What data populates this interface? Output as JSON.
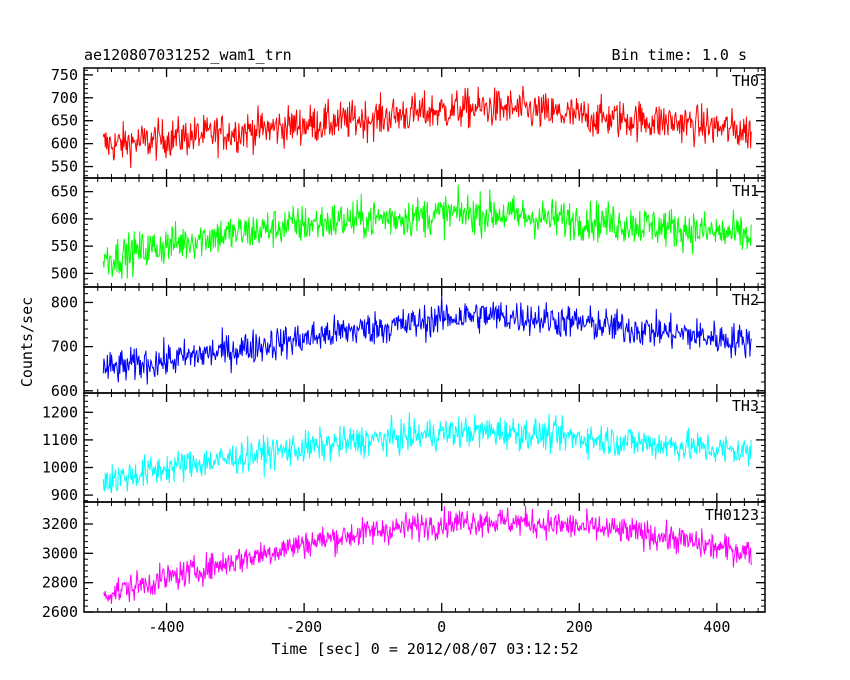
{
  "header": {
    "title": "ae120807031252_wam1_trn",
    "bin_time": "Bin time: 1.0 s"
  },
  "chart_data": {
    "type": "line",
    "title": "ae120807031252_wam1_trn",
    "subtitle": "Bin time: 1.0 s",
    "xlabel": "Time [sec] 0 = 2012/08/07 03:12:52",
    "ylabel": "Counts/sec",
    "x": [
      -500,
      -475,
      -450,
      -425,
      -400,
      -375,
      -350,
      -325,
      -300,
      -275,
      -250,
      -225,
      -200,
      -175,
      -150,
      -125,
      -100,
      -75,
      -50,
      -25,
      0,
      25,
      50,
      75,
      100,
      125,
      150,
      175,
      200,
      225,
      250,
      275,
      300,
      325,
      350,
      375,
      400,
      425,
      450
    ],
    "xlim": [
      -520,
      470
    ],
    "xticks": [
      -400,
      -200,
      0,
      200,
      400
    ],
    "grid": false,
    "panels": [
      {
        "name": "TH0",
        "color": "#ff0000",
        "ylim": [
          525,
          765
        ],
        "yticks": [
          550,
          600,
          650,
          700,
          750
        ],
        "noise": 42,
        "values": [
          600,
          598,
          603,
          605,
          612,
          615,
          618,
          622,
          625,
          630,
          633,
          638,
          642,
          645,
          648,
          652,
          655,
          660,
          665,
          668,
          672,
          675,
          678,
          678,
          676,
          673,
          668,
          664,
          660,
          656,
          655,
          653,
          650,
          648,
          645,
          640,
          635,
          630,
          625
        ]
      },
      {
        "name": "TH1",
        "color": "#00ff00",
        "ylim": [
          475,
          675
        ],
        "yticks": [
          500,
          550,
          600,
          650
        ],
        "noise": 36,
        "values": [
          525,
          530,
          538,
          545,
          552,
          558,
          565,
          570,
          573,
          577,
          582,
          588,
          590,
          593,
          596,
          598,
          600,
          602,
          604,
          605,
          608,
          610,
          610,
          610,
          607,
          604,
          601,
          600,
          598,
          596,
          593,
          590,
          588,
          585,
          581,
          578,
          575,
          572,
          568
        ]
      },
      {
        "name": "TH2",
        "color": "#0000ff",
        "ylim": [
          595,
          835
        ],
        "yticks": [
          600,
          700,
          800
        ],
        "noise": 38,
        "values": [
          648,
          652,
          658,
          663,
          668,
          675,
          682,
          688,
          693,
          700,
          706,
          712,
          718,
          725,
          732,
          738,
          742,
          746,
          750,
          756,
          765,
          768,
          770,
          770,
          768,
          766,
          762,
          758,
          754,
          750,
          745,
          741,
          737,
          733,
          729,
          724,
          719,
          715,
          712
        ]
      },
      {
        "name": "TH3",
        "color": "#00ffff",
        "ylim": [
          875,
          1270
        ],
        "yticks": [
          900,
          1000,
          1100,
          1200
        ],
        "noise": 58,
        "values": [
          950,
          960,
          972,
          985,
          998,
          1008,
          1018,
          1025,
          1035,
          1045,
          1055,
          1062,
          1070,
          1078,
          1086,
          1094,
          1100,
          1106,
          1112,
          1118,
          1124,
          1128,
          1130,
          1130,
          1128,
          1124,
          1118,
          1112,
          1108,
          1103,
          1098,
          1093,
          1088,
          1083,
          1078,
          1072,
          1066,
          1060,
          1055
        ]
      },
      {
        "name": "TH0123",
        "color": "#ff00ff",
        "ylim": [
          2600,
          3350
        ],
        "yticks": [
          2600,
          2800,
          3000,
          3200
        ],
        "noise": 95,
        "values": [
          2720,
          2740,
          2770,
          2800,
          2830,
          2860,
          2890,
          2920,
          2950,
          2980,
          3010,
          3040,
          3065,
          3090,
          3110,
          3130,
          3150,
          3165,
          3180,
          3190,
          3205,
          3215,
          3220,
          3220,
          3215,
          3210,
          3200,
          3190,
          3180,
          3170,
          3160,
          3145,
          3130,
          3110,
          3090,
          3060,
          3040,
          3020,
          3010
        ]
      }
    ]
  }
}
